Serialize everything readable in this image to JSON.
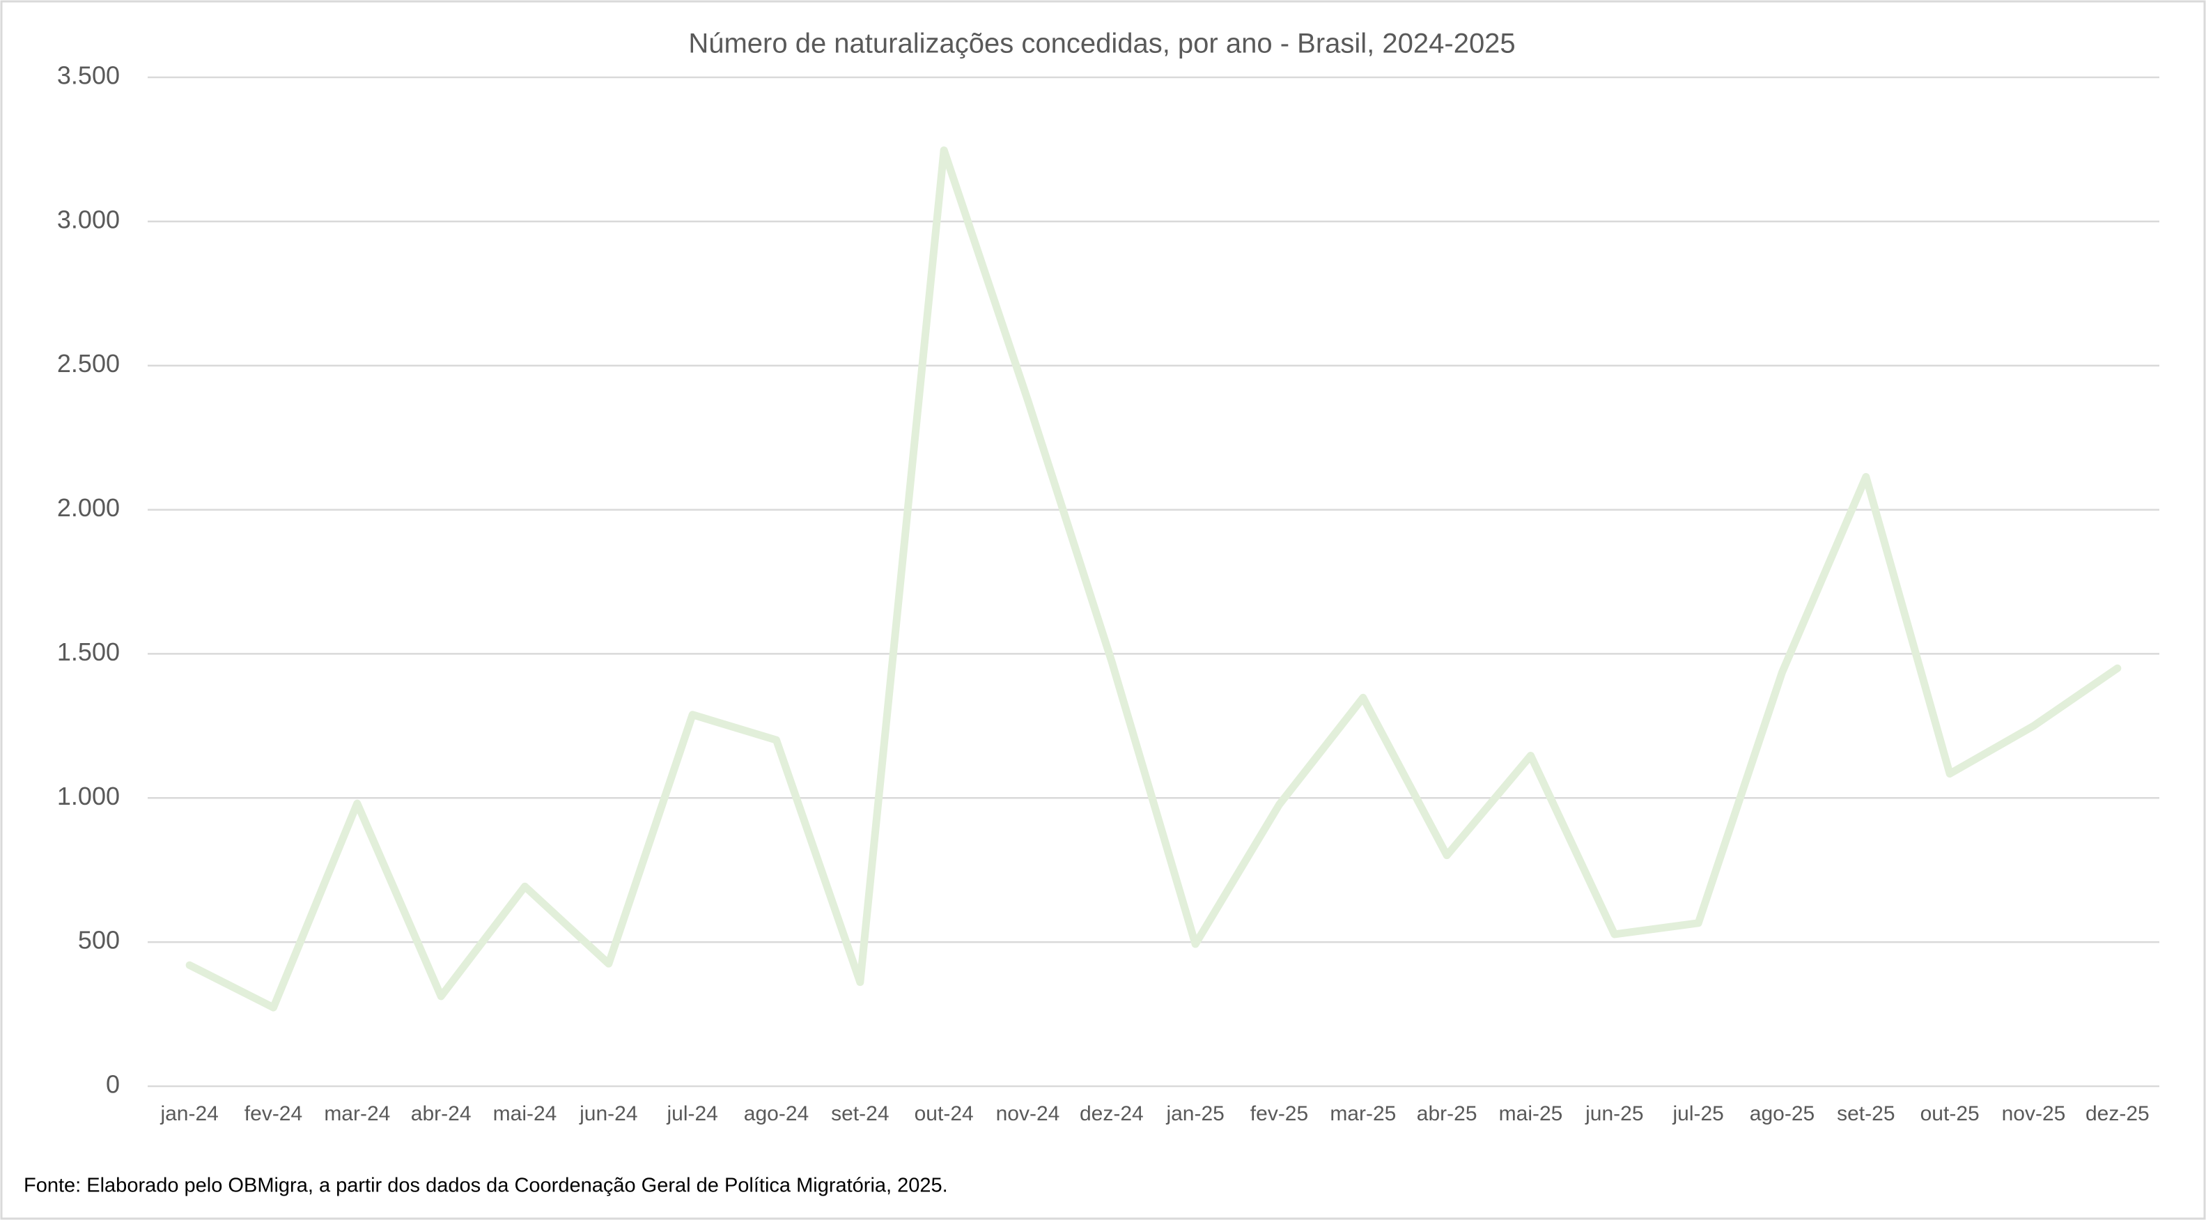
{
  "chart_data": {
    "type": "line",
    "title": "Número de naturalizações concedidas, por ano - Brasil, 2024-2025",
    "source": "Fonte: Elaborado pelo OBMigra, a partir dos dados da Coordenação Geral de Política Migratória, 2025.",
    "categories": [
      "jan-24",
      "fev-24",
      "mar-24",
      "abr-24",
      "mai-24",
      "jun-24",
      "jul-24",
      "ago-24",
      "set-24",
      "out-24",
      "nov-24",
      "dez-24",
      "jan-25",
      "fev-25",
      "mar-25",
      "abr-25",
      "mai-25",
      "jun-25",
      "jul-25",
      "ago-25",
      "set-25",
      "out-25",
      "nov-25",
      "dez-25"
    ],
    "values": [
      420,
      273,
      981,
      312,
      693,
      425,
      1289,
      1201,
      361,
      3247,
      2380,
      1475,
      493,
      977,
      1348,
      801,
      1147,
      527,
      566,
      1436,
      2114,
      1084,
      1250,
      1450
    ],
    "color": "#e2efda",
    "ylim": [
      0,
      3500
    ],
    "yticks": [
      0,
      500,
      {
        "value": 1000,
        "label": "1.000"
      },
      {
        "value": 1500,
        "label": "1.500"
      },
      {
        "value": 2000,
        "label": "2.000"
      },
      {
        "value": 2500,
        "label": "2.500"
      },
      {
        "value": 3000,
        "label": "3.000"
      },
      {
        "value": 3500,
        "label": "3.500"
      }
    ],
    "grid": true
  }
}
